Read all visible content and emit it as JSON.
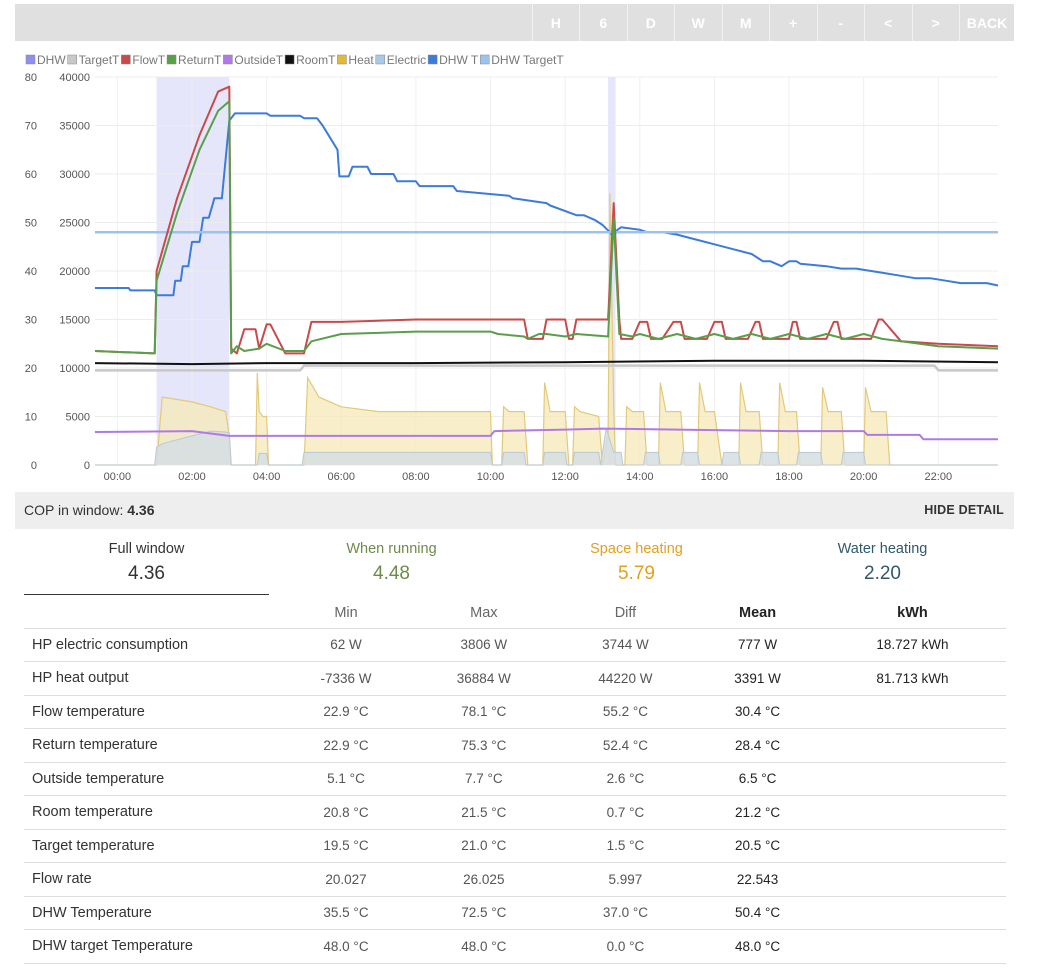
{
  "toolbar": {
    "buttons": [
      "H",
      "6",
      "D",
      "W",
      "M",
      "+",
      "-",
      "<",
      ">",
      "BACK"
    ]
  },
  "chart_data": {
    "type": "line",
    "legend": [
      {
        "name": "DHW",
        "color": "#8f8ff0"
      },
      {
        "name": "TargetT",
        "color": "#c8c8c8"
      },
      {
        "name": "FlowT",
        "color": "#c94a4a"
      },
      {
        "name": "ReturnT",
        "color": "#5a9e4b"
      },
      {
        "name": "OutsideT",
        "color": "#b07ae6"
      },
      {
        "name": "RoomT",
        "color": "#111111"
      },
      {
        "name": "Heat",
        "color": "#e3b93a"
      },
      {
        "name": "Electric",
        "color": "#a9c9e6"
      },
      {
        "name": "DHW T",
        "color": "#3b7bdc"
      },
      {
        "name": "DHW TargetT",
        "color": "#9cc3ee"
      }
    ],
    "legend_position": "top-left",
    "grid": true,
    "y_left": {
      "range": [
        0,
        80
      ],
      "ticks": [
        0,
        10,
        20,
        30,
        40,
        50,
        60,
        70,
        80
      ]
    },
    "y_right": {
      "range": [
        0,
        40000
      ],
      "ticks": [
        0,
        5000,
        10000,
        15000,
        20000,
        25000,
        30000,
        35000,
        40000
      ]
    },
    "x_range_hours": [
      -0.6,
      23.6
    ],
    "x_ticks": [
      "00:00",
      "02:00",
      "04:00",
      "06:00",
      "08:00",
      "10:00",
      "12:00",
      "14:00",
      "16:00",
      "18:00",
      "20:00",
      "22:00"
    ],
    "dhw_periods": [
      [
        1.05,
        3.0
      ],
      [
        13.15,
        13.35
      ]
    ],
    "series": [
      {
        "name": "DHW T",
        "axis": "left",
        "color": "#3b7bdc",
        "x": [
          -0.6,
          0.3,
          0.35,
          1.0,
          1.05,
          1.5,
          1.55,
          1.7,
          1.75,
          1.9,
          2.0,
          2.2,
          2.3,
          2.45,
          2.6,
          2.8,
          3.0,
          3.15,
          3.3,
          3.5,
          3.6,
          4.0,
          4.1,
          4.9,
          5.0,
          5.35,
          5.5,
          5.9,
          5.95,
          6.2,
          6.3,
          6.7,
          6.8,
          7.4,
          7.5,
          8.0,
          8.1,
          9.0,
          9.1,
          10.5,
          10.6,
          11.5,
          11.6,
          12.3,
          12.5,
          12.8,
          13.0,
          13.2,
          13.3,
          13.4,
          13.5,
          14.0,
          14.2,
          14.6,
          15.0,
          15.5,
          16.0,
          16.5,
          17.0,
          17.3,
          17.5,
          17.8,
          18.0,
          18.2,
          18.3,
          19.0,
          19.4,
          19.8,
          20.2,
          20.6,
          21.0,
          21.4,
          21.8,
          22.2,
          22.6,
          23.0,
          23.3,
          23.6
        ],
        "y": [
          36.5,
          36.5,
          36,
          36,
          35,
          35,
          38,
          38,
          41,
          41,
          46,
          46,
          51,
          51,
          55,
          55,
          71,
          72.5,
          72.5,
          72.5,
          72.5,
          72.5,
          72,
          72,
          71.5,
          71.5,
          70,
          65,
          59.5,
          59.5,
          61.5,
          61.5,
          60,
          60,
          58.5,
          58.5,
          57.5,
          57.5,
          56.5,
          55.5,
          55,
          54,
          53.5,
          51.5,
          51.5,
          50.5,
          49.5,
          48,
          47,
          48.5,
          49,
          48.5,
          48,
          48,
          47.5,
          46.5,
          45.5,
          44.5,
          43.5,
          42,
          42,
          41,
          42,
          42,
          41.5,
          41,
          40.5,
          40.5,
          40,
          39.5,
          39,
          38.5,
          38.5,
          38,
          37.5,
          37.5,
          37.5,
          37
        ]
      },
      {
        "name": "DHW TargetT",
        "axis": "left",
        "color": "#9cc3ee",
        "x": [
          -0.6,
          23.6
        ],
        "y": [
          48,
          48
        ]
      },
      {
        "name": "TargetT",
        "axis": "left",
        "color": "#c8c8c8",
        "x": [
          -0.6,
          4.9,
          5.0,
          21.9,
          22.0,
          23.6
        ],
        "y": [
          19.5,
          19.5,
          20.5,
          20.5,
          19.5,
          19.5
        ]
      },
      {
        "name": "RoomT",
        "axis": "left",
        "color": "#111111",
        "x": [
          -0.6,
          2.0,
          4.0,
          8.0,
          12.0,
          16.0,
          20.0,
          23.6
        ],
        "y": [
          21,
          20.8,
          21,
          21,
          21.2,
          21.5,
          21.5,
          21.2
        ]
      },
      {
        "name": "OutsideT",
        "axis": "left",
        "color": "#b07ae6",
        "x": [
          -0.6,
          2.0,
          3.0,
          5.0,
          8.0,
          10.0,
          10.1,
          12.0,
          13.0,
          15.0,
          18.0,
          20.0,
          20.1,
          21.5,
          21.6,
          23.6
        ],
        "y": [
          6.8,
          7.0,
          6.0,
          6.0,
          6.0,
          6.0,
          7.0,
          7.3,
          7.5,
          7.3,
          7.0,
          7.0,
          6.2,
          6.2,
          5.3,
          5.3
        ]
      },
      {
        "name": "FlowT",
        "axis": "left",
        "color": "#c94a4a",
        "x": [
          -0.6,
          1.0,
          1.05,
          1.6,
          2.2,
          2.7,
          3.0,
          3.05,
          3.2,
          3.4,
          3.7,
          3.8,
          4.0,
          4.1,
          4.5,
          5.0,
          5.2,
          5.3,
          6.0,
          8.0,
          10.0,
          10.1,
          10.9,
          11.0,
          11.4,
          11.5,
          12.0,
          12.1,
          12.2,
          12.3,
          13.15,
          13.3,
          13.45,
          13.5,
          13.8,
          14.0,
          14.2,
          14.3,
          14.6,
          14.9,
          15.1,
          15.2,
          15.8,
          16.0,
          16.2,
          16.3,
          16.9,
          17.1,
          17.2,
          17.3,
          18.0,
          18.1,
          18.2,
          18.3,
          19.0,
          19.2,
          19.3,
          19.4,
          20.2,
          20.4,
          20.5,
          21.0,
          22.0,
          23.6
        ],
        "y": [
          23.5,
          23,
          40,
          55,
          68,
          77,
          78,
          24,
          23,
          28,
          28,
          24,
          29,
          29,
          23,
          23,
          29.5,
          29.5,
          29.5,
          30,
          30,
          30,
          30,
          26,
          26,
          30,
          30,
          26,
          26,
          30,
          30,
          54,
          30,
          26,
          26,
          29.5,
          29.5,
          26,
          26,
          29.5,
          29.5,
          26,
          26,
          29.5,
          29.5,
          26,
          26,
          29.5,
          29.5,
          26,
          26,
          29.5,
          29.5,
          26,
          26,
          29.5,
          29.5,
          26,
          26,
          30,
          30,
          25.5,
          25,
          24.5
        ]
      },
      {
        "name": "ReturnT",
        "axis": "left",
        "color": "#5a9e4b",
        "x": [
          -0.6,
          1.0,
          1.05,
          1.6,
          2.2,
          2.7,
          3.0,
          3.05,
          3.2,
          3.4,
          3.8,
          4.0,
          4.5,
          5.0,
          5.2,
          6.0,
          8.0,
          10.0,
          10.2,
          10.9,
          11.0,
          11.3,
          11.5,
          12.0,
          12.3,
          13.15,
          13.3,
          13.45,
          13.8,
          14.0,
          14.5,
          15.0,
          15.5,
          16.0,
          16.5,
          17.0,
          17.5,
          18.0,
          18.5,
          19.0,
          19.5,
          20.0,
          20.5,
          21.0,
          22.0,
          23.6
        ],
        "y": [
          23.5,
          23,
          38,
          52,
          65,
          73,
          75,
          23,
          24.5,
          23.5,
          24,
          25,
          23.5,
          23.5,
          25.5,
          27,
          27.5,
          27.5,
          27,
          26.5,
          26,
          27,
          27,
          26.5,
          27,
          26.5,
          51,
          27,
          26.5,
          27,
          26,
          27,
          26,
          27,
          26,
          27,
          26,
          27,
          26,
          27,
          26,
          27,
          26,
          25.5,
          24.5,
          24
        ]
      }
    ],
    "heat_area": {
      "axis": "right",
      "color": "#e3b93a",
      "x": [
        -0.6,
        1.0,
        1.05,
        1.2,
        2.0,
        2.5,
        2.9,
        3.0,
        3.05,
        3.7,
        3.75,
        3.8,
        3.9,
        4.0,
        4.05,
        4.9,
        5.0,
        5.1,
        5.4,
        6.0,
        7.0,
        8.0,
        9.0,
        10.0,
        10.05,
        10.3,
        10.35,
        10.5,
        10.9,
        11.0,
        11.4,
        11.45,
        11.6,
        12.0,
        12.1,
        12.2,
        12.25,
        12.4,
        12.9,
        13.0,
        13.15,
        13.2,
        13.3,
        13.35,
        13.5,
        13.6,
        13.65,
        13.8,
        14.1,
        14.2,
        14.5,
        14.55,
        14.7,
        15.1,
        15.2,
        15.55,
        15.6,
        15.75,
        16.0,
        16.2,
        16.65,
        16.7,
        16.85,
        17.2,
        17.3,
        17.7,
        17.75,
        17.9,
        18.2,
        18.3,
        18.85,
        18.9,
        19.05,
        19.4,
        19.5,
        20.0,
        20.05,
        20.2,
        20.6,
        20.7,
        23.6
      ],
      "y": [
        0,
        0,
        0,
        7000,
        6500,
        6000,
        5500,
        3000,
        0,
        0,
        9500,
        5500,
        5000,
        5000,
        0,
        0,
        0,
        9000,
        7000,
        6000,
        5500,
        5500,
        5500,
        5500,
        0,
        0,
        6000,
        5500,
        5500,
        0,
        0,
        8500,
        5500,
        5500,
        0,
        0,
        6000,
        5500,
        5000,
        0,
        3000,
        28000,
        6000,
        0,
        0,
        0,
        6000,
        5500,
        5500,
        0,
        0,
        8500,
        5500,
        5500,
        0,
        0,
        8500,
        5500,
        5500,
        0,
        0,
        8500,
        5500,
        5500,
        0,
        0,
        8500,
        5500,
        5500,
        0,
        0,
        8000,
        5500,
        5500,
        0,
        0,
        8000,
        5500,
        5500,
        0,
        0
      ]
    },
    "electric_area": {
      "axis": "right",
      "color": "#a9c9e6",
      "x": [
        -0.6,
        1.0,
        1.05,
        1.2,
        2.0,
        2.5,
        2.9,
        3.0,
        3.05,
        3.75,
        3.8,
        4.0,
        4.05,
        4.95,
        5.0,
        10.0,
        10.05,
        10.3,
        10.35,
        10.9,
        10.95,
        11.4,
        11.45,
        12.0,
        12.05,
        12.2,
        12.25,
        12.9,
        12.95,
        13.1,
        13.3,
        13.5,
        13.55,
        14.1,
        14.15,
        14.5,
        14.55,
        15.1,
        15.15,
        15.55,
        15.6,
        16.2,
        16.25,
        16.65,
        16.7,
        17.2,
        17.25,
        17.7,
        17.75,
        18.2,
        18.25,
        18.85,
        18.9,
        19.4,
        19.45,
        20.0,
        20.05,
        20.6,
        20.65,
        23.6
      ],
      "y": [
        0,
        0,
        1800,
        2200,
        3000,
        3500,
        3400,
        3300,
        0,
        0,
        1200,
        1200,
        0,
        0,
        1300,
        1300,
        0,
        0,
        1300,
        1300,
        0,
        0,
        1300,
        1300,
        0,
        0,
        1300,
        1300,
        0,
        3800,
        1300,
        1300,
        0,
        0,
        1300,
        1300,
        0,
        0,
        1300,
        1300,
        0,
        0,
        1300,
        1300,
        0,
        0,
        1300,
        1300,
        0,
        0,
        1300,
        1300,
        0,
        0,
        1300,
        1300,
        0,
        0,
        0,
        0
      ]
    }
  },
  "cop_bar": {
    "label": "COP in window:",
    "value": "4.36",
    "toggle": "HIDE DETAIL"
  },
  "summary": {
    "full": {
      "title": "Full window",
      "value": "4.36",
      "color": "#333333"
    },
    "running": {
      "title": "When running",
      "value": "4.48",
      "color": "#6e8a4a"
    },
    "space": {
      "title": "Space heating",
      "value": "5.79",
      "color": "#e0a020"
    },
    "water": {
      "title": "Water heating",
      "value": "2.20",
      "color": "#30586e"
    }
  },
  "stats": {
    "headers": [
      "",
      "Min",
      "Max",
      "Diff",
      "Mean",
      "kWh"
    ],
    "rows": [
      [
        "HP electric consumption",
        "62 W",
        "3806 W",
        "3744 W",
        "777 W",
        "18.727 kWh"
      ],
      [
        "HP heat output",
        "-7336 W",
        "36884 W",
        "44220 W",
        "3391 W",
        "81.713 kWh"
      ],
      [
        "Flow temperature",
        "22.9 °C",
        "78.1 °C",
        "55.2 °C",
        "30.4 °C",
        ""
      ],
      [
        "Return temperature",
        "22.9 °C",
        "75.3 °C",
        "52.4 °C",
        "28.4 °C",
        ""
      ],
      [
        "Outside temperature",
        "5.1 °C",
        "7.7 °C",
        "2.6 °C",
        "6.5 °C",
        ""
      ],
      [
        "Room temperature",
        "20.8 °C",
        "21.5 °C",
        "0.7 °C",
        "21.2 °C",
        ""
      ],
      [
        "Target temperature",
        "19.5 °C",
        "21.0 °C",
        "1.5 °C",
        "20.5 °C",
        ""
      ],
      [
        "Flow rate",
        "20.027",
        "26.025",
        "5.997",
        "22.543",
        ""
      ],
      [
        "DHW Temperature",
        "35.5 °C",
        "72.5 °C",
        "37.0 °C",
        "50.4 °C",
        ""
      ],
      [
        "DHW target Temperature",
        "48.0 °C",
        "48.0 °C",
        "0.0 °C",
        "48.0 °C",
        ""
      ]
    ]
  }
}
